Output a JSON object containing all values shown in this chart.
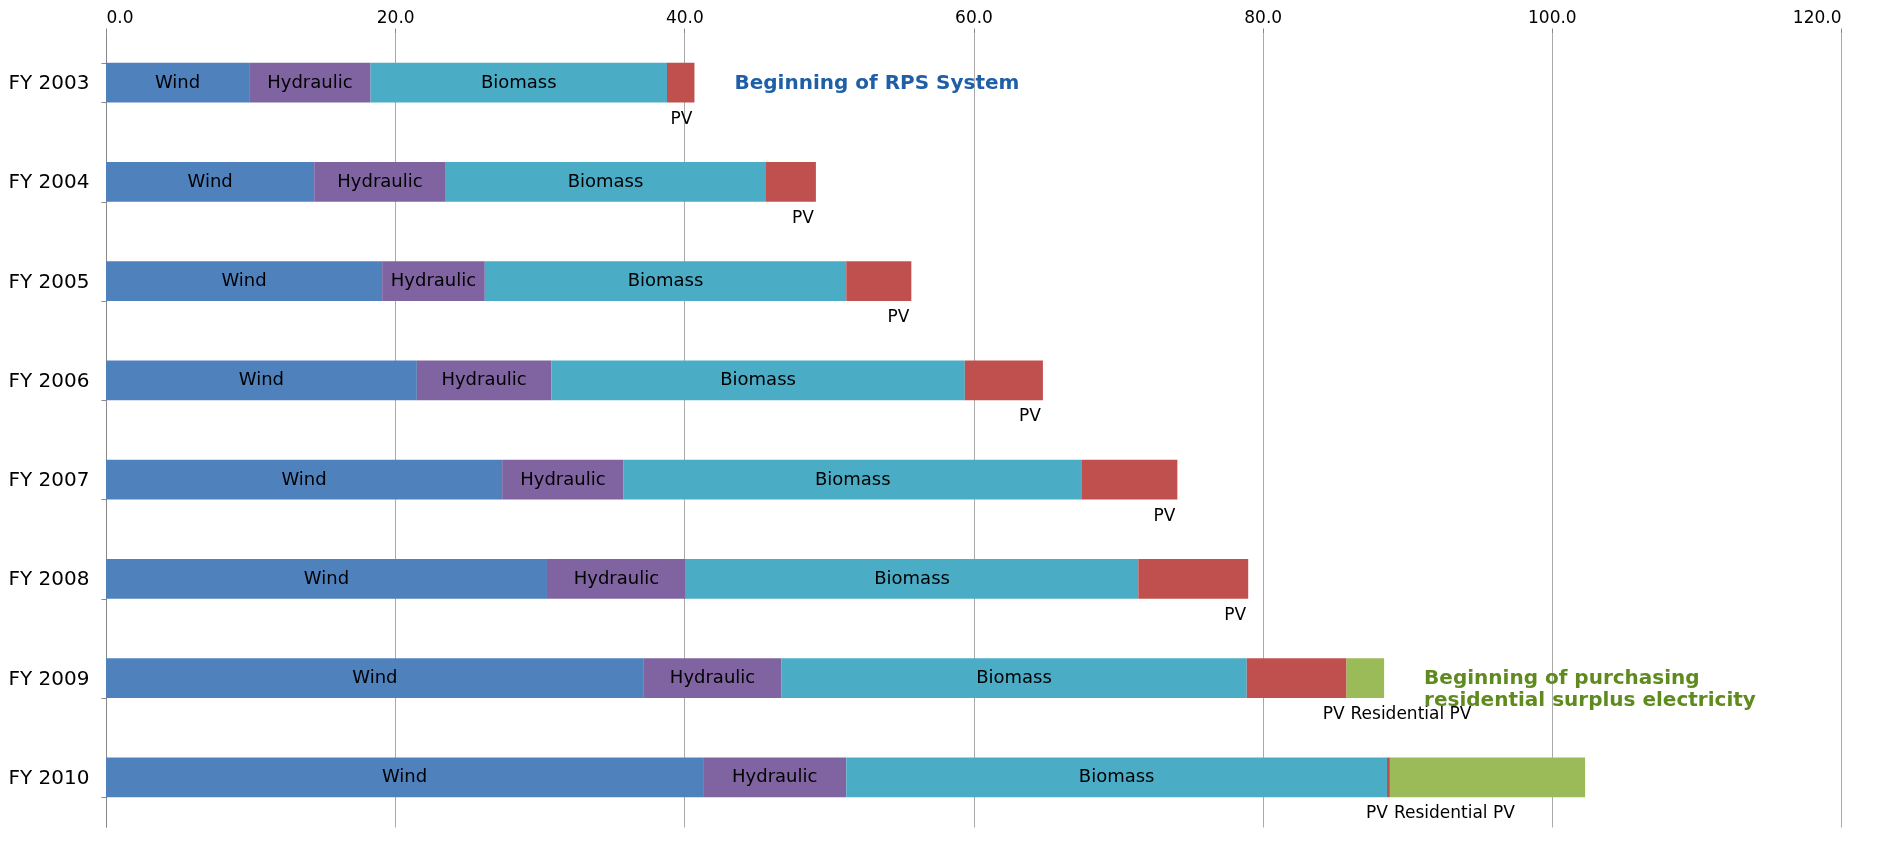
{
  "chart_data": {
    "type": "bar",
    "orientation": "horizontal",
    "stacked": true,
    "categories": [
      "FY 2003",
      "FY 2004",
      "FY 2005",
      "FY 2006",
      "FY 2007",
      "FY 2008",
      "FY 2009",
      "FY 2010"
    ],
    "series": [
      {
        "name": "Wind",
        "color": "#4f81bd",
        "values": [
          9.9,
          14.4,
          19.1,
          21.5,
          27.4,
          30.5,
          37.2,
          41.3
        ]
      },
      {
        "name": "Hydraulic",
        "color": "#8064a2",
        "values": [
          8.4,
          9.1,
          7.1,
          9.3,
          8.4,
          9.6,
          9.5,
          9.9
        ]
      },
      {
        "name": "Biomass",
        "color": "#4bacc6",
        "values": [
          20.5,
          22.1,
          25.0,
          28.6,
          31.7,
          31.3,
          32.2,
          37.4
        ]
      },
      {
        "name": "PV",
        "color": "#c0504d",
        "values": [
          1.9,
          3.5,
          4.5,
          5.4,
          6.6,
          7.6,
          6.9,
          0.2
        ]
      },
      {
        "name": "Residential PV",
        "color": "#9bbb59",
        "values": [
          0,
          0,
          0,
          0,
          0,
          0,
          2.6,
          13.5
        ]
      }
    ],
    "xlim": [
      0,
      120
    ],
    "xticks": [
      {
        "value": 0,
        "label": "0.0"
      },
      {
        "value": 20,
        "label": "20.0"
      },
      {
        "value": 40,
        "label": "40.0"
      },
      {
        "value": 60,
        "label": "60.0"
      },
      {
        "value": 80,
        "label": "80.0"
      },
      {
        "value": 100,
        "label": "100.0"
      },
      {
        "value": 120,
        "label": "120.0"
      }
    ],
    "grid": "x",
    "legend": false,
    "annotations": [
      {
        "text": "Beginning of RPS System",
        "x": 40.7,
        "y": "FY 2003"
      },
      {
        "text": "Beginning of purchasing residential surplus electricity",
        "x": 88.4,
        "y": "FY 2009"
      }
    ]
  }
}
